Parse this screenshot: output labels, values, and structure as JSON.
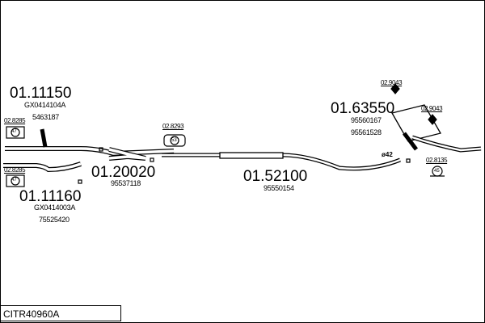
{
  "diagram_code": "CITR40960A",
  "parts": [
    {
      "number": "01.11150",
      "refs": [
        "GX0414104A",
        "5463187"
      ]
    },
    {
      "number": "01.11160",
      "refs": [
        "GX0414003A",
        "75525420"
      ]
    },
    {
      "number": "01.20020",
      "refs": [
        "95537118"
      ]
    },
    {
      "number": "01.52100",
      "refs": [
        "95550154"
      ]
    },
    {
      "number": "01.63550",
      "refs": [
        "95560167",
        "95561528"
      ]
    }
  ],
  "accessories": [
    {
      "number": "02.8285",
      "symbol": "47"
    },
    {
      "number": "02.8285",
      "symbol": "47"
    },
    {
      "number": "02.8293",
      "symbol": "53"
    },
    {
      "number": "02.9043"
    },
    {
      "number": "02.9043"
    },
    {
      "number": "02.8135",
      "symbol": "45"
    }
  ],
  "diameter_label": "ø42"
}
